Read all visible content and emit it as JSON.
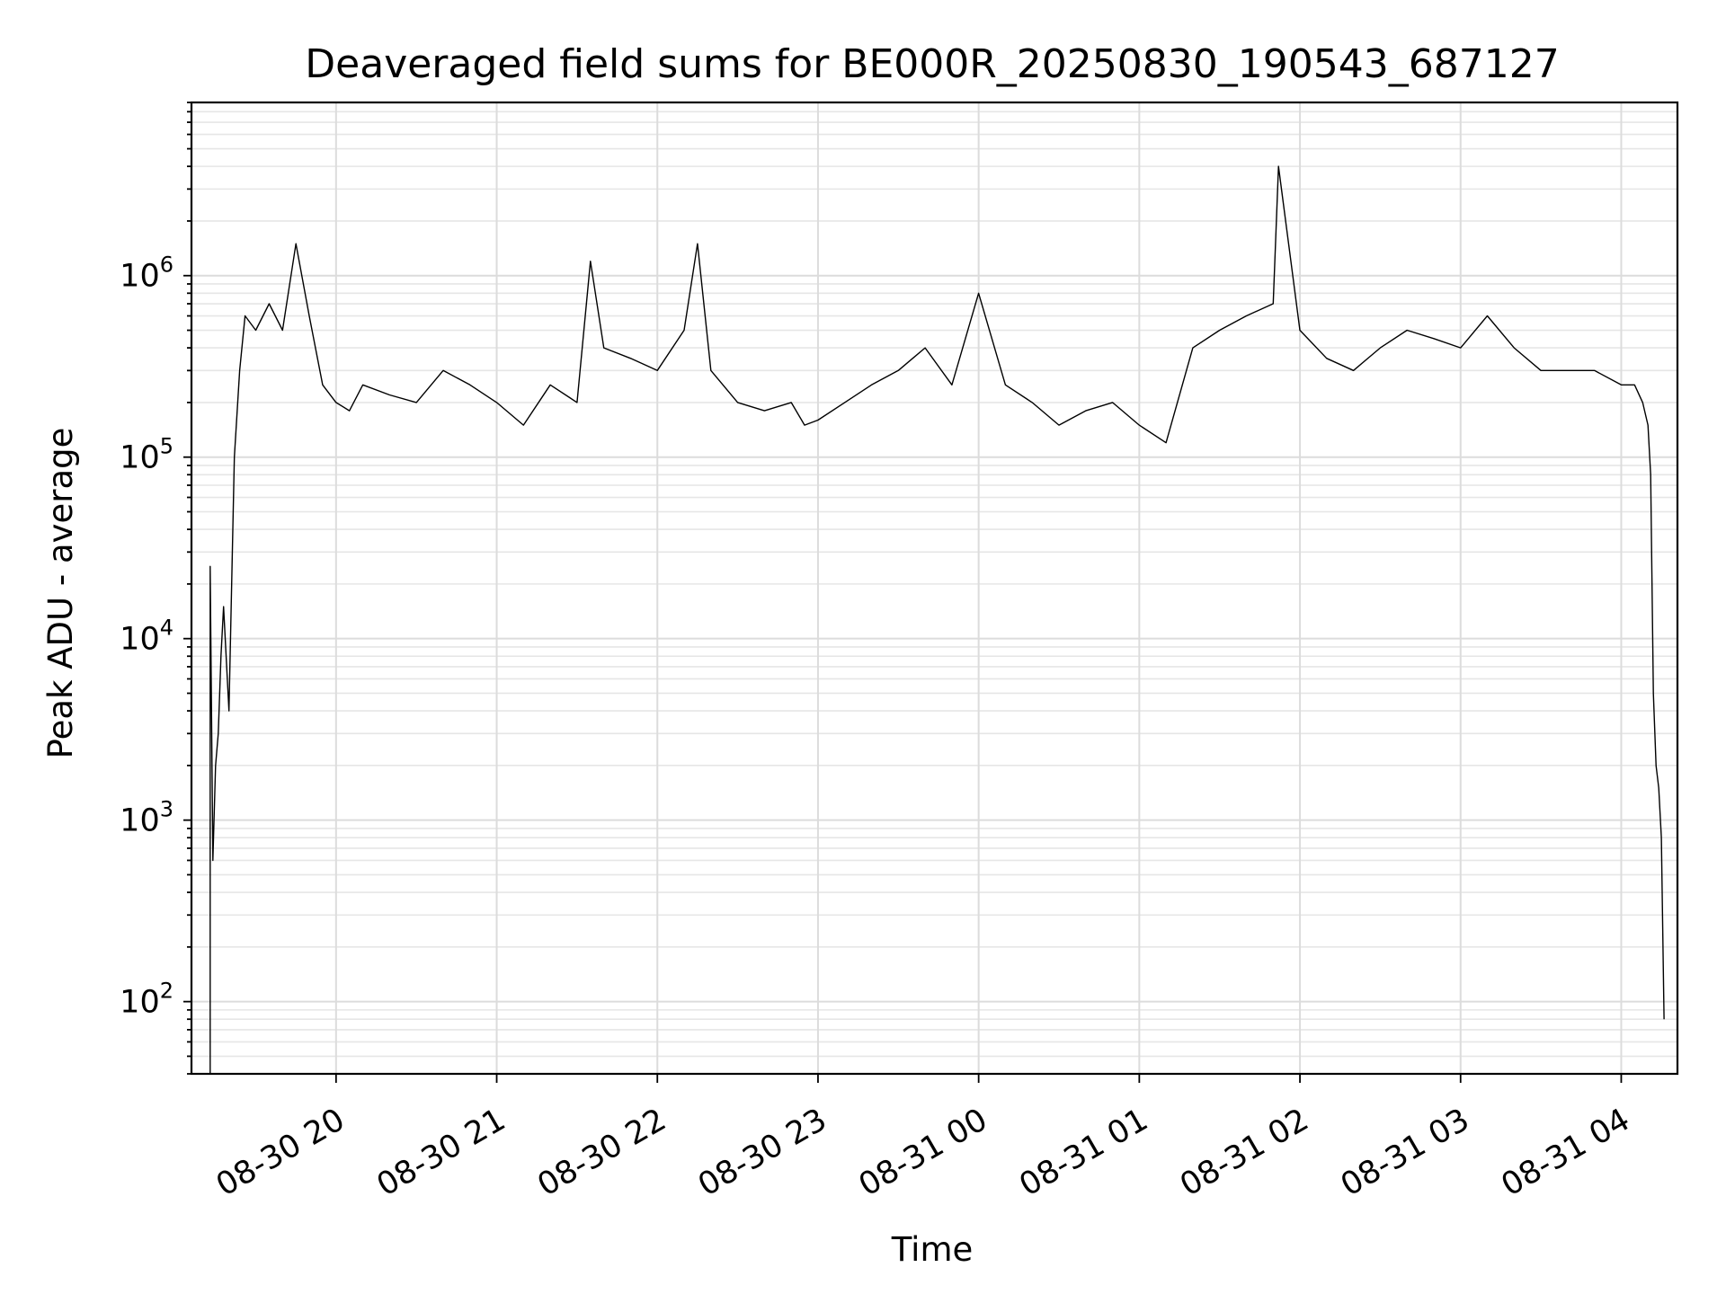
{
  "chart_data": {
    "type": "line",
    "title": "Deaveraged field sums for BE000R_20250830_190543_687127",
    "xlabel": "Time",
    "ylabel": "Peak ADU - average",
    "yscale": "log",
    "ylim": [
      40,
      9000000
    ],
    "xlim": [
      "2025-08-30 19:06",
      "2025-08-31 04:21"
    ],
    "grid": true,
    "x_ticks": [
      "08-30 20",
      "08-30 21",
      "08-30 22",
      "08-30 23",
      "08-31 00",
      "08-31 01",
      "08-31 02",
      "08-31 03",
      "08-31 04"
    ],
    "y_ticks": [
      {
        "value": 100,
        "base": "10",
        "exp": "2"
      },
      {
        "value": 1000,
        "base": "10",
        "exp": "3"
      },
      {
        "value": 10000,
        "base": "10",
        "exp": "4"
      },
      {
        "value": 100000,
        "base": "10",
        "exp": "5"
      },
      {
        "value": 1000000,
        "base": "10",
        "exp": "6"
      }
    ],
    "line_color": "#000000",
    "series": [
      {
        "x": [
          "2025-08-30 19:13",
          "2025-08-30 19:13",
          "2025-08-30 19:14",
          "2025-08-30 19:15",
          "2025-08-30 19:16",
          "2025-08-30 19:17",
          "2025-08-30 19:18",
          "2025-08-30 19:20",
          "2025-08-30 19:22",
          "2025-08-30 19:24",
          "2025-08-30 19:26",
          "2025-08-30 19:30",
          "2025-08-30 19:35",
          "2025-08-30 19:40",
          "2025-08-30 19:45",
          "2025-08-30 19:50",
          "2025-08-30 19:55",
          "2025-08-30 20:00",
          "2025-08-30 20:05",
          "2025-08-30 20:10",
          "2025-08-30 20:20",
          "2025-08-30 20:30",
          "2025-08-30 20:40",
          "2025-08-30 20:50",
          "2025-08-30 21:00",
          "2025-08-30 21:10",
          "2025-08-30 21:20",
          "2025-08-30 21:30",
          "2025-08-30 21:35",
          "2025-08-30 21:40",
          "2025-08-30 21:50",
          "2025-08-30 22:00",
          "2025-08-30 22:10",
          "2025-08-30 22:15",
          "2025-08-30 22:20",
          "2025-08-30 22:30",
          "2025-08-30 22:40",
          "2025-08-30 22:50",
          "2025-08-30 22:55",
          "2025-08-30 23:00",
          "2025-08-30 23:10",
          "2025-08-30 23:20",
          "2025-08-30 23:30",
          "2025-08-30 23:40",
          "2025-08-30 23:50",
          "2025-08-31 00:00",
          "2025-08-31 00:10",
          "2025-08-31 00:20",
          "2025-08-31 00:30",
          "2025-08-31 00:40",
          "2025-08-31 00:50",
          "2025-08-31 01:00",
          "2025-08-31 01:10",
          "2025-08-31 01:20",
          "2025-08-31 01:30",
          "2025-08-31 01:40",
          "2025-08-31 01:50",
          "2025-08-31 01:52",
          "2025-08-31 02:00",
          "2025-08-31 02:10",
          "2025-08-31 02:20",
          "2025-08-31 02:30",
          "2025-08-31 02:40",
          "2025-08-31 02:50",
          "2025-08-31 03:00",
          "2025-08-31 03:10",
          "2025-08-31 03:20",
          "2025-08-31 03:30",
          "2025-08-31 03:40",
          "2025-08-31 03:50",
          "2025-08-31 04:00",
          "2025-08-31 04:05",
          "2025-08-31 04:08",
          "2025-08-31 04:10",
          "2025-08-31 04:11",
          "2025-08-31 04:12",
          "2025-08-31 04:13",
          "2025-08-31 04:14",
          "2025-08-31 04:15",
          "2025-08-31 04:16"
        ],
        "y": [
          40,
          25000,
          600,
          2000,
          3000,
          8000,
          15000,
          4000,
          100000,
          300000,
          600000,
          500000,
          700000,
          500000,
          1500000,
          600000,
          250000,
          200000,
          180000,
          250000,
          220000,
          200000,
          300000,
          250000,
          200000,
          150000,
          250000,
          200000,
          1200000,
          400000,
          350000,
          300000,
          500000,
          1500000,
          300000,
          200000,
          180000,
          200000,
          150000,
          160000,
          200000,
          250000,
          300000,
          400000,
          250000,
          800000,
          250000,
          200000,
          150000,
          180000,
          200000,
          150000,
          120000,
          400000,
          500000,
          600000,
          700000,
          4000000,
          500000,
          350000,
          300000,
          400000,
          500000,
          450000,
          400000,
          600000,
          400000,
          300000,
          300000,
          300000,
          250000,
          250000,
          200000,
          150000,
          80000,
          5000,
          2000,
          1500,
          800,
          80
        ]
      }
    ]
  }
}
